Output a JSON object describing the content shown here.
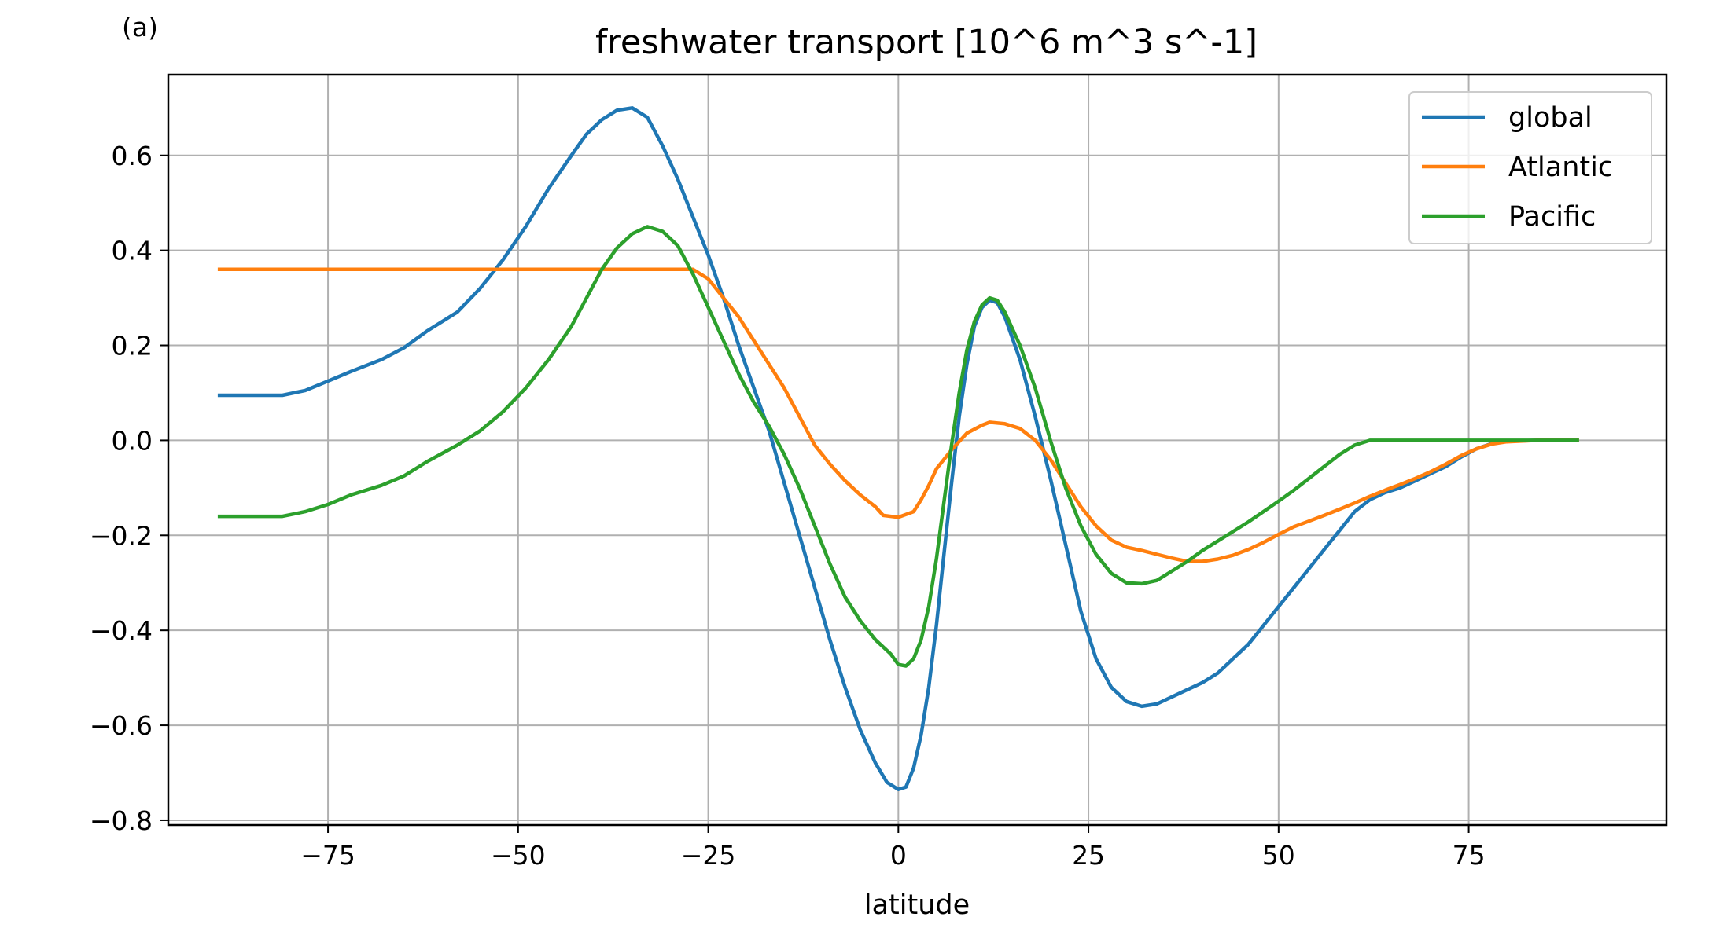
{
  "panel_label": "(a)",
  "chart_data": {
    "type": "line",
    "title": "freshwater transport [10^6 m^3 s^-1]",
    "xlabel": "latitude",
    "ylabel": "",
    "xlim": [
      -96,
      101
    ],
    "ylim": [
      -0.81,
      0.77
    ],
    "xticks": [
      -75,
      -50,
      -25,
      0,
      25,
      50,
      75
    ],
    "xtick_labels": [
      "−75",
      "−50",
      "−25",
      "0",
      "25",
      "50",
      "75"
    ],
    "yticks": [
      -0.8,
      -0.6,
      -0.4,
      -0.2,
      0.0,
      0.2,
      0.4,
      0.6
    ],
    "ytick_labels": [
      "−0.8",
      "−0.6",
      "−0.4",
      "−0.2",
      "0.0",
      "0.2",
      "0.4",
      "0.6"
    ],
    "grid": true,
    "legend_position": "top-right",
    "series": [
      {
        "name": "global",
        "color": "#1f77b4",
        "points": [
          [
            -89.5,
            0.095
          ],
          [
            -85,
            0.095
          ],
          [
            -81,
            0.095
          ],
          [
            -78,
            0.105
          ],
          [
            -75,
            0.125
          ],
          [
            -72,
            0.145
          ],
          [
            -68,
            0.17
          ],
          [
            -65,
            0.195
          ],
          [
            -62,
            0.23
          ],
          [
            -58,
            0.27
          ],
          [
            -55,
            0.32
          ],
          [
            -52,
            0.38
          ],
          [
            -49,
            0.45
          ],
          [
            -46,
            0.53
          ],
          [
            -43,
            0.6
          ],
          [
            -41,
            0.645
          ],
          [
            -39,
            0.675
          ],
          [
            -37,
            0.695
          ],
          [
            -35,
            0.7
          ],
          [
            -33,
            0.68
          ],
          [
            -31,
            0.62
          ],
          [
            -29,
            0.55
          ],
          [
            -27,
            0.47
          ],
          [
            -25,
            0.39
          ],
          [
            -23,
            0.3
          ],
          [
            -21,
            0.2
          ],
          [
            -19,
            0.11
          ],
          [
            -17,
            0.02
          ],
          [
            -15,
            -0.09
          ],
          [
            -13,
            -0.2
          ],
          [
            -11,
            -0.31
          ],
          [
            -9,
            -0.42
          ],
          [
            -7,
            -0.52
          ],
          [
            -5,
            -0.61
          ],
          [
            -3,
            -0.68
          ],
          [
            -1.5,
            -0.72
          ],
          [
            0,
            -0.735
          ],
          [
            1,
            -0.73
          ],
          [
            2,
            -0.69
          ],
          [
            3,
            -0.62
          ],
          [
            4,
            -0.52
          ],
          [
            5,
            -0.39
          ],
          [
            6,
            -0.24
          ],
          [
            7,
            -0.09
          ],
          [
            8,
            0.05
          ],
          [
            9,
            0.16
          ],
          [
            10,
            0.24
          ],
          [
            11,
            0.28
          ],
          [
            12,
            0.295
          ],
          [
            13,
            0.29
          ],
          [
            14,
            0.26
          ],
          [
            16,
            0.17
          ],
          [
            18,
            0.05
          ],
          [
            20,
            -0.08
          ],
          [
            22,
            -0.22
          ],
          [
            24,
            -0.36
          ],
          [
            26,
            -0.46
          ],
          [
            28,
            -0.52
          ],
          [
            30,
            -0.55
          ],
          [
            32,
            -0.56
          ],
          [
            34,
            -0.555
          ],
          [
            36,
            -0.54
          ],
          [
            38,
            -0.525
          ],
          [
            40,
            -0.51
          ],
          [
            42,
            -0.49
          ],
          [
            44,
            -0.46
          ],
          [
            46,
            -0.43
          ],
          [
            48,
            -0.39
          ],
          [
            50,
            -0.35
          ],
          [
            52,
            -0.31
          ],
          [
            54,
            -0.27
          ],
          [
            56,
            -0.23
          ],
          [
            58,
            -0.19
          ],
          [
            60,
            -0.15
          ],
          [
            62,
            -0.125
          ],
          [
            64,
            -0.11
          ],
          [
            66,
            -0.1
          ],
          [
            68,
            -0.085
          ],
          [
            70,
            -0.07
          ],
          [
            72,
            -0.055
          ],
          [
            74,
            -0.035
          ],
          [
            76,
            -0.018
          ],
          [
            78,
            -0.007
          ],
          [
            80,
            -0.002
          ],
          [
            84,
            0.0
          ],
          [
            89.5,
            0.0
          ]
        ]
      },
      {
        "name": "Atlantic",
        "color": "#ff7f0e",
        "points": [
          [
            -89.5,
            0.36
          ],
          [
            -80,
            0.36
          ],
          [
            -70,
            0.36
          ],
          [
            -60,
            0.36
          ],
          [
            -50,
            0.36
          ],
          [
            -40,
            0.36
          ],
          [
            -30,
            0.36
          ],
          [
            -27,
            0.36
          ],
          [
            -25,
            0.34
          ],
          [
            -23,
            0.3
          ],
          [
            -21,
            0.26
          ],
          [
            -19,
            0.21
          ],
          [
            -17,
            0.16
          ],
          [
            -15,
            0.11
          ],
          [
            -13,
            0.05
          ],
          [
            -11,
            -0.01
          ],
          [
            -9,
            -0.05
          ],
          [
            -7,
            -0.085
          ],
          [
            -5,
            -0.115
          ],
          [
            -3,
            -0.14
          ],
          [
            -2,
            -0.158
          ],
          [
            0,
            -0.162
          ],
          [
            2,
            -0.15
          ],
          [
            3,
            -0.125
          ],
          [
            4,
            -0.095
          ],
          [
            5,
            -0.06
          ],
          [
            7,
            -0.02
          ],
          [
            9,
            0.015
          ],
          [
            11,
            0.032
          ],
          [
            12,
            0.038
          ],
          [
            14,
            0.035
          ],
          [
            16,
            0.025
          ],
          [
            18,
            0.0
          ],
          [
            20,
            -0.04
          ],
          [
            22,
            -0.09
          ],
          [
            24,
            -0.14
          ],
          [
            26,
            -0.18
          ],
          [
            28,
            -0.21
          ],
          [
            30,
            -0.225
          ],
          [
            32,
            -0.232
          ],
          [
            34,
            -0.24
          ],
          [
            36,
            -0.248
          ],
          [
            38,
            -0.255
          ],
          [
            40,
            -0.255
          ],
          [
            42,
            -0.25
          ],
          [
            44,
            -0.242
          ],
          [
            46,
            -0.23
          ],
          [
            48,
            -0.215
          ],
          [
            50,
            -0.198
          ],
          [
            52,
            -0.182
          ],
          [
            54,
            -0.17
          ],
          [
            56,
            -0.158
          ],
          [
            58,
            -0.145
          ],
          [
            60,
            -0.132
          ],
          [
            62,
            -0.118
          ],
          [
            64,
            -0.105
          ],
          [
            66,
            -0.093
          ],
          [
            68,
            -0.08
          ],
          [
            70,
            -0.066
          ],
          [
            72,
            -0.05
          ],
          [
            74,
            -0.032
          ],
          [
            76,
            -0.018
          ],
          [
            78,
            -0.008
          ],
          [
            80,
            -0.003
          ],
          [
            84,
            0.0
          ],
          [
            89.5,
            0.0
          ]
        ]
      },
      {
        "name": "Pacific",
        "color": "#2ca02c",
        "points": [
          [
            -89.5,
            -0.16
          ],
          [
            -85,
            -0.16
          ],
          [
            -81,
            -0.16
          ],
          [
            -78,
            -0.15
          ],
          [
            -75,
            -0.135
          ],
          [
            -72,
            -0.115
          ],
          [
            -68,
            -0.095
          ],
          [
            -65,
            -0.075
          ],
          [
            -62,
            -0.045
          ],
          [
            -58,
            -0.01
          ],
          [
            -55,
            0.02
          ],
          [
            -52,
            0.06
          ],
          [
            -49,
            0.11
          ],
          [
            -46,
            0.17
          ],
          [
            -43,
            0.24
          ],
          [
            -41,
            0.3
          ],
          [
            -39,
            0.36
          ],
          [
            -37,
            0.405
          ],
          [
            -35,
            0.435
          ],
          [
            -33,
            0.45
          ],
          [
            -31,
            0.44
          ],
          [
            -29,
            0.41
          ],
          [
            -27,
            0.35
          ],
          [
            -25,
            0.28
          ],
          [
            -23,
            0.21
          ],
          [
            -21,
            0.14
          ],
          [
            -19,
            0.08
          ],
          [
            -17,
            0.03
          ],
          [
            -15,
            -0.03
          ],
          [
            -13,
            -0.1
          ],
          [
            -11,
            -0.18
          ],
          [
            -9,
            -0.26
          ],
          [
            -7,
            -0.33
          ],
          [
            -5,
            -0.38
          ],
          [
            -3,
            -0.42
          ],
          [
            -1,
            -0.45
          ],
          [
            0,
            -0.472
          ],
          [
            1,
            -0.475
          ],
          [
            2,
            -0.46
          ],
          [
            3,
            -0.42
          ],
          [
            4,
            -0.35
          ],
          [
            5,
            -0.25
          ],
          [
            6,
            -0.13
          ],
          [
            7,
            -0.01
          ],
          [
            8,
            0.1
          ],
          [
            9,
            0.19
          ],
          [
            10,
            0.25
          ],
          [
            11,
            0.285
          ],
          [
            12,
            0.3
          ],
          [
            13,
            0.295
          ],
          [
            14,
            0.27
          ],
          [
            16,
            0.2
          ],
          [
            18,
            0.11
          ],
          [
            20,
            0.0
          ],
          [
            22,
            -0.1
          ],
          [
            24,
            -0.18
          ],
          [
            26,
            -0.24
          ],
          [
            28,
            -0.28
          ],
          [
            30,
            -0.3
          ],
          [
            32,
            -0.302
          ],
          [
            34,
            -0.295
          ],
          [
            36,
            -0.275
          ],
          [
            38,
            -0.255
          ],
          [
            40,
            -0.232
          ],
          [
            42,
            -0.212
          ],
          [
            44,
            -0.192
          ],
          [
            46,
            -0.172
          ],
          [
            48,
            -0.15
          ],
          [
            50,
            -0.128
          ],
          [
            52,
            -0.105
          ],
          [
            54,
            -0.08
          ],
          [
            56,
            -0.055
          ],
          [
            58,
            -0.03
          ],
          [
            60,
            -0.01
          ],
          [
            62,
            0.0
          ],
          [
            70,
            0.0
          ],
          [
            80,
            0.0
          ],
          [
            89.5,
            0.0
          ]
        ]
      }
    ]
  }
}
